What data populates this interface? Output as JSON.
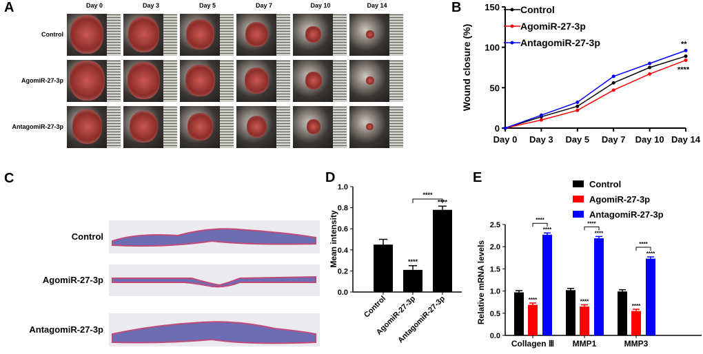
{
  "panels": {
    "a": "A",
    "b": "B",
    "c": "C",
    "d": "D",
    "e": "E"
  },
  "panel_a": {
    "days": [
      "Day 0",
      "Day 3",
      "Day 5",
      "Day 7",
      "Day 10",
      "Day 14"
    ],
    "groups": [
      "Control",
      "AgomiR-27-3p",
      "AntagomiR-27-3p"
    ]
  },
  "panel_c": {
    "groups": [
      "Control",
      "AgomiR-27-3p",
      "AntagomiR-27-3p"
    ]
  },
  "chart_data": [
    {
      "type": "line",
      "panel": "B",
      "ylabel": "Wound closure (%)",
      "categories": [
        "Day 0",
        "Day 3",
        "Day 5",
        "Day 7",
        "Day 10",
        "Day 14"
      ],
      "ylim": [
        0,
        150
      ],
      "yticks": [
        0,
        50,
        100,
        150
      ],
      "legend": "top-left",
      "series": [
        {
          "name": "Control",
          "color": "#000000",
          "values": [
            0,
            14,
            27,
            56,
            75,
            89
          ]
        },
        {
          "name": "AgomiR-27-3p",
          "color": "#ff0000",
          "values": [
            0,
            10,
            22,
            47,
            67,
            84
          ]
        },
        {
          "name": "AntagomiR-27-3p",
          "color": "#0000ff",
          "values": [
            0,
            16,
            32,
            64,
            80,
            96
          ]
        }
      ],
      "annotations": [
        "**",
        "****"
      ]
    },
    {
      "type": "bar",
      "panel": "D",
      "ylabel": "Mean intensity",
      "categories": [
        "Control",
        "AgomiR-27-3p",
        "AntagomiR-27-3p"
      ],
      "values": [
        0.45,
        0.21,
        0.78
      ],
      "errors": [
        0.05,
        0.04,
        0.035
      ],
      "ylim": [
        0,
        1.0
      ],
      "yticks": [
        "0.0",
        "0.2",
        "0.4",
        "0.6",
        "0.8",
        "1.0"
      ],
      "color": "#000000",
      "annotations": {
        "bar_stars": [
          "",
          "****",
          "****"
        ],
        "bracket": "****"
      }
    },
    {
      "type": "bar",
      "panel": "E",
      "ylabel": "Relative mRNA levels",
      "categories": [
        "Collagen Ⅲ",
        "MMP1",
        "MMP3"
      ],
      "ylim": [
        0,
        2.5
      ],
      "yticks": [
        "0.0",
        "0.5",
        "1.0",
        "1.5",
        "2.0",
        "2.5"
      ],
      "legend": "top-right",
      "series": [
        {
          "name": "Control",
          "color": "#000000",
          "values": [
            0.97,
            1.02,
            0.99
          ]
        },
        {
          "name": "AgomiR-27-3p",
          "color": "#ff0000",
          "values": [
            0.69,
            0.65,
            0.55
          ]
        },
        {
          "name": "AntagomiR-27-3p",
          "color": "#0000ff",
          "values": [
            2.27,
            2.19,
            1.73
          ]
        }
      ],
      "annotations": {
        "stars": "****"
      }
    }
  ]
}
